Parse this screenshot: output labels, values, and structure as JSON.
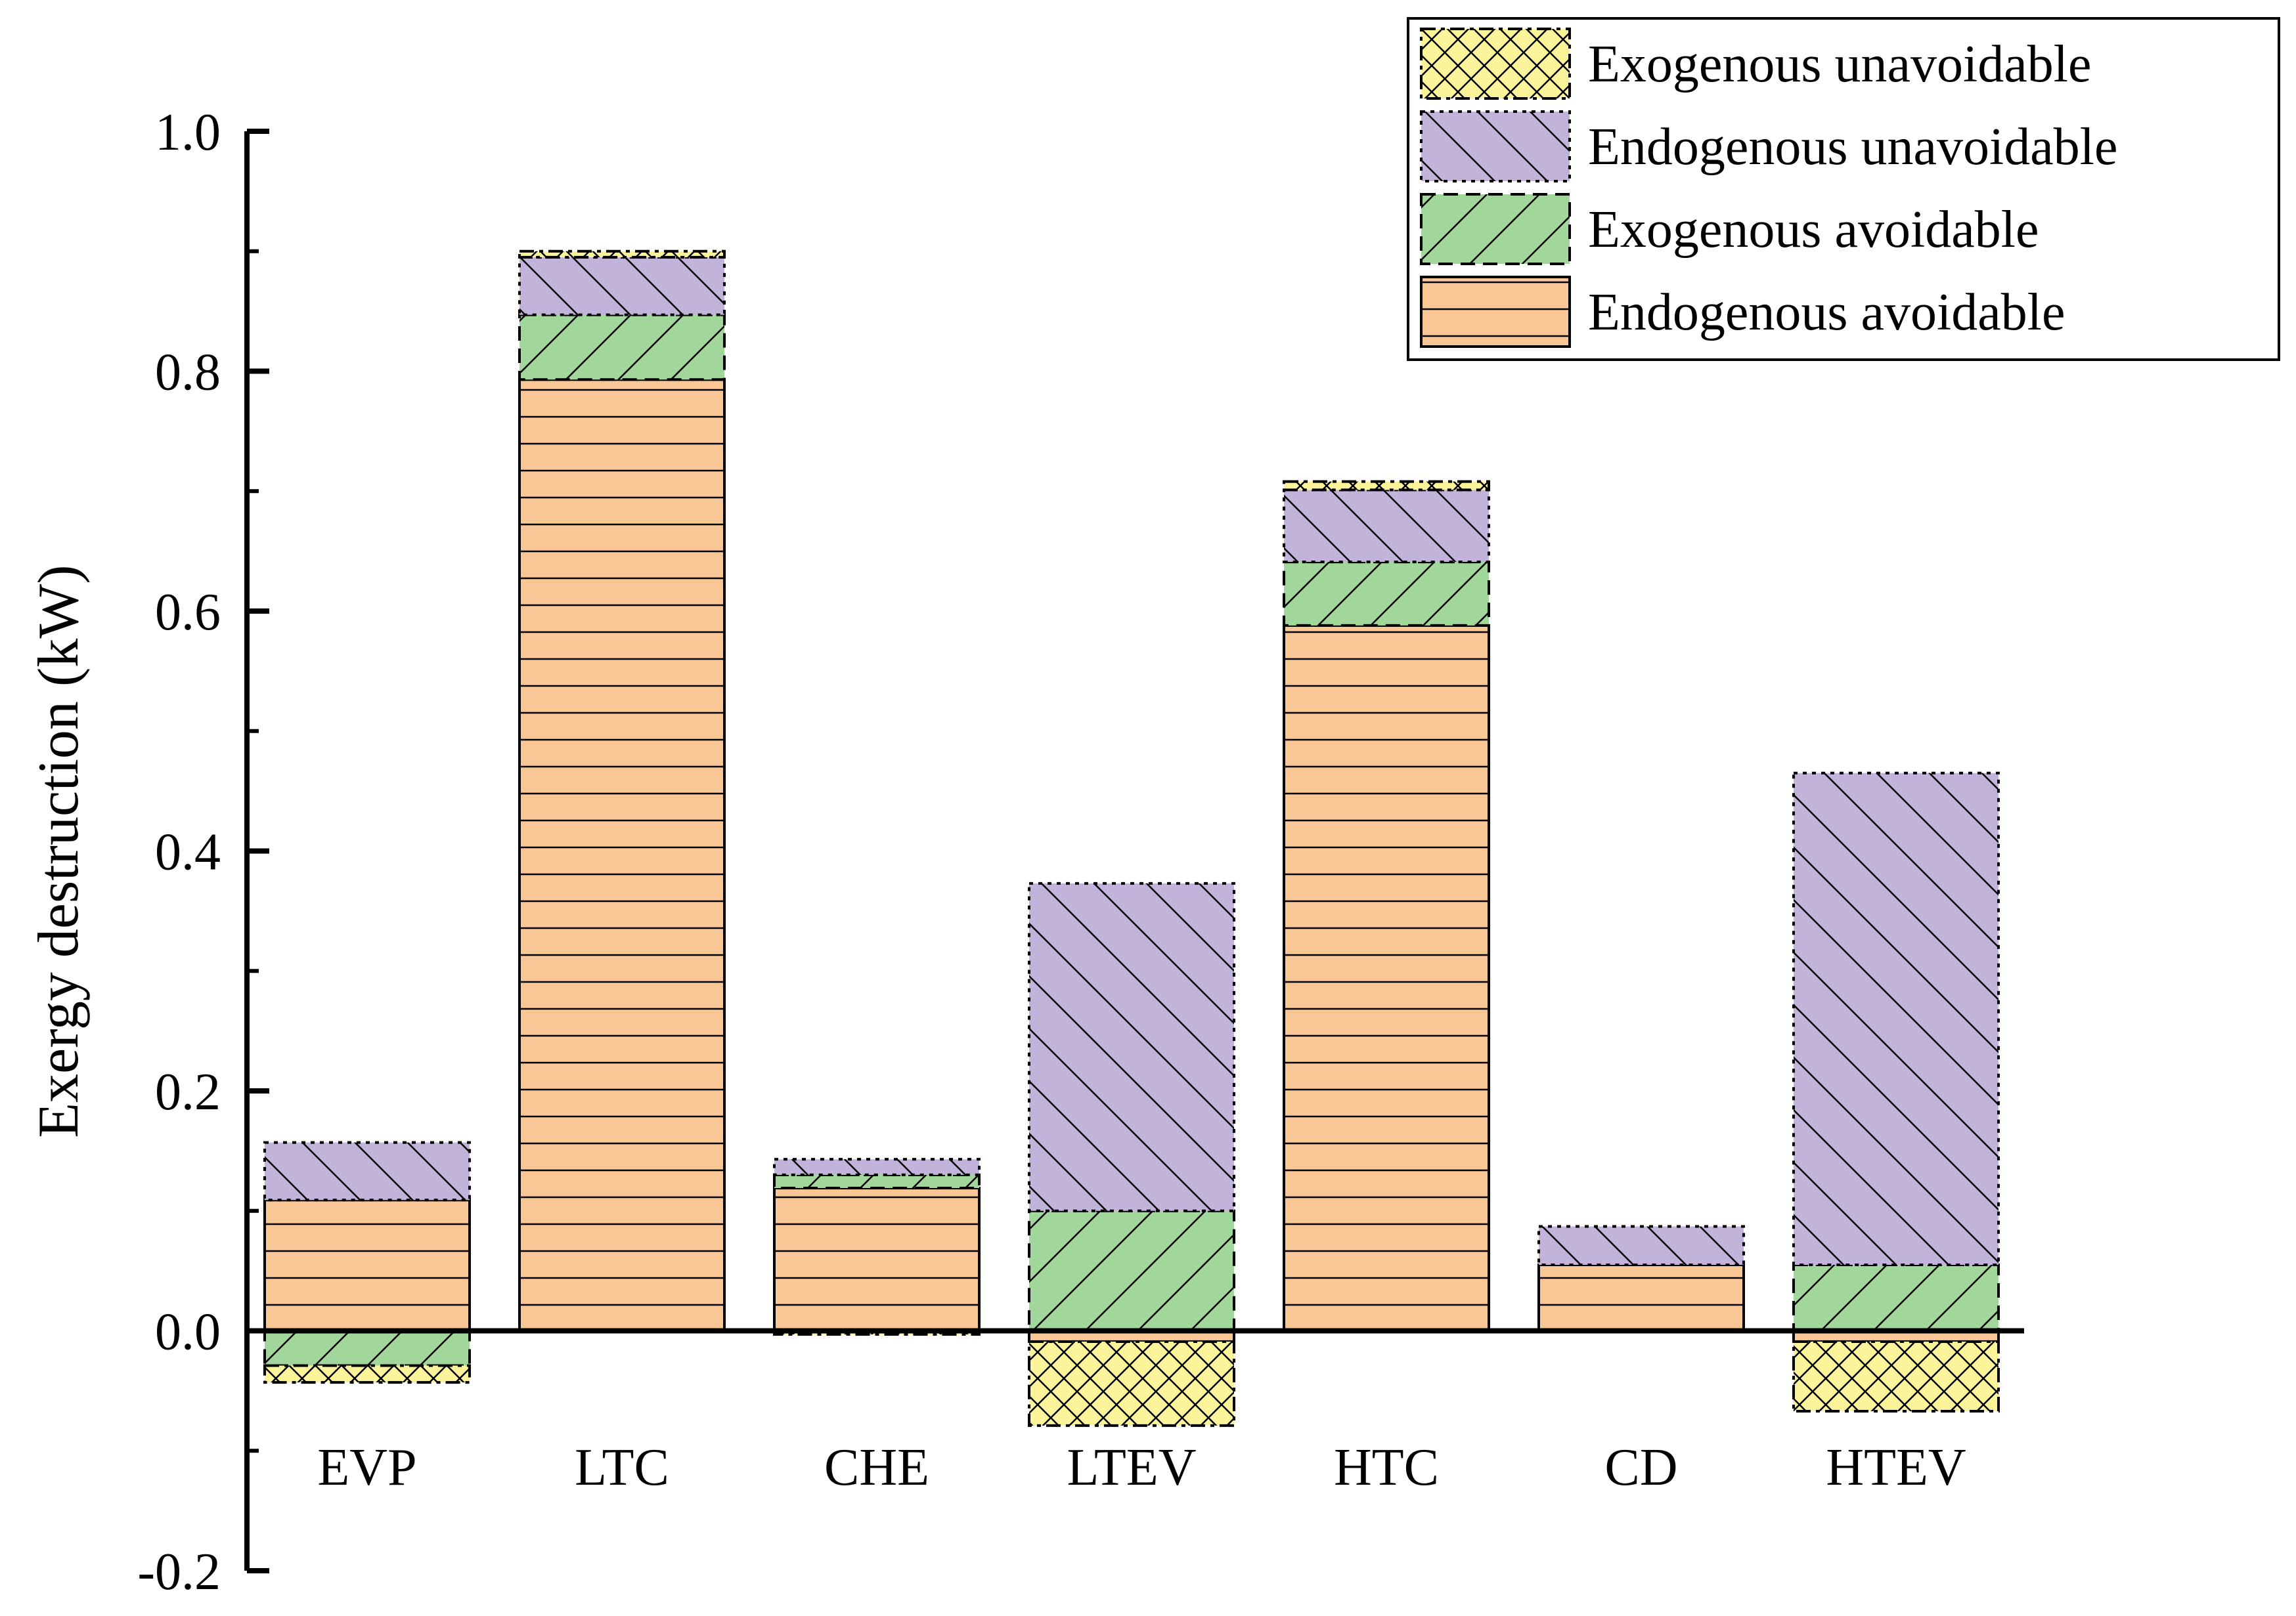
{
  "chart_data": {
    "type": "bar",
    "stacked": true,
    "title": "",
    "xlabel": "",
    "ylabel": "Exergy destruction (kW)",
    "ylim": [
      -0.2,
      1.0
    ],
    "yticks": [
      "-0.2",
      "0.0",
      "0.2",
      "0.4",
      "0.6",
      "0.8",
      "1.0"
    ],
    "grid": false,
    "legend_position": "top-right",
    "categories": [
      "EVP",
      "LTC",
      "CHE",
      "LTEV",
      "HTC",
      "CD",
      "HTEV"
    ],
    "series": [
      {
        "name": "Endogenous avoidable",
        "color": "#F9C695",
        "pattern": "horizontal-lines",
        "border": "solid",
        "values": [
          0.109,
          0.793,
          0.119,
          -0.009,
          0.588,
          0.055,
          -0.009
        ]
      },
      {
        "name": "Exogenous avoidable",
        "color": "#A1D79A",
        "pattern": "forward-diagonal",
        "border": "dashed",
        "values": [
          -0.029,
          0.054,
          0.011,
          0.1,
          0.053,
          0.0,
          0.055
        ]
      },
      {
        "name": "Endogenous unavoidable",
        "color": "#C2B3DA",
        "pattern": "backward-diagonal",
        "border": "dotted",
        "values": [
          0.048,
          0.048,
          0.013,
          0.273,
          0.06,
          0.032,
          0.41
        ]
      },
      {
        "name": "Exogenous unavoidable",
        "color": "#FBF39A",
        "pattern": "crosshatch",
        "border": "dash-dot",
        "values": [
          -0.014,
          0.005,
          -0.003,
          -0.07,
          0.007,
          0.0,
          -0.058
        ]
      }
    ],
    "legend_order": [
      "Exogenous unavoidable",
      "Endogenous unavoidable",
      "Exogenous avoidable",
      "Endogenous avoidable"
    ]
  }
}
